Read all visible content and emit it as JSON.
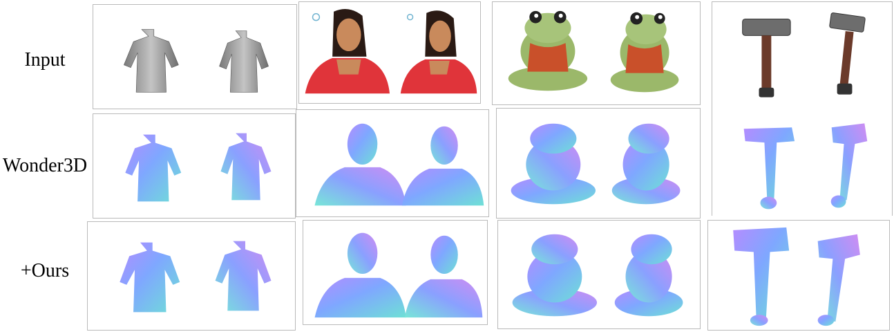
{
  "figure": {
    "rows": [
      {
        "label": "Input"
      },
      {
        "label": "Wonder3D"
      },
      {
        "label": "+Ours"
      }
    ],
    "objects": [
      "sweater",
      "woman",
      "frog",
      "hammer"
    ],
    "colors": {
      "sweater_gray": "#a6a6a6",
      "saree_red": "#e0343a",
      "skin": "#c98a5c",
      "frog_green": "#9bb86a",
      "frog_sweater": "#c9502a",
      "hammer_handle": "#6b3a2a",
      "hammer_head": "#6d6d6d",
      "normal_blue": "#7fa7ff",
      "normal_purple": "#b07ef2",
      "normal_cyan": "#79e0e0"
    }
  }
}
